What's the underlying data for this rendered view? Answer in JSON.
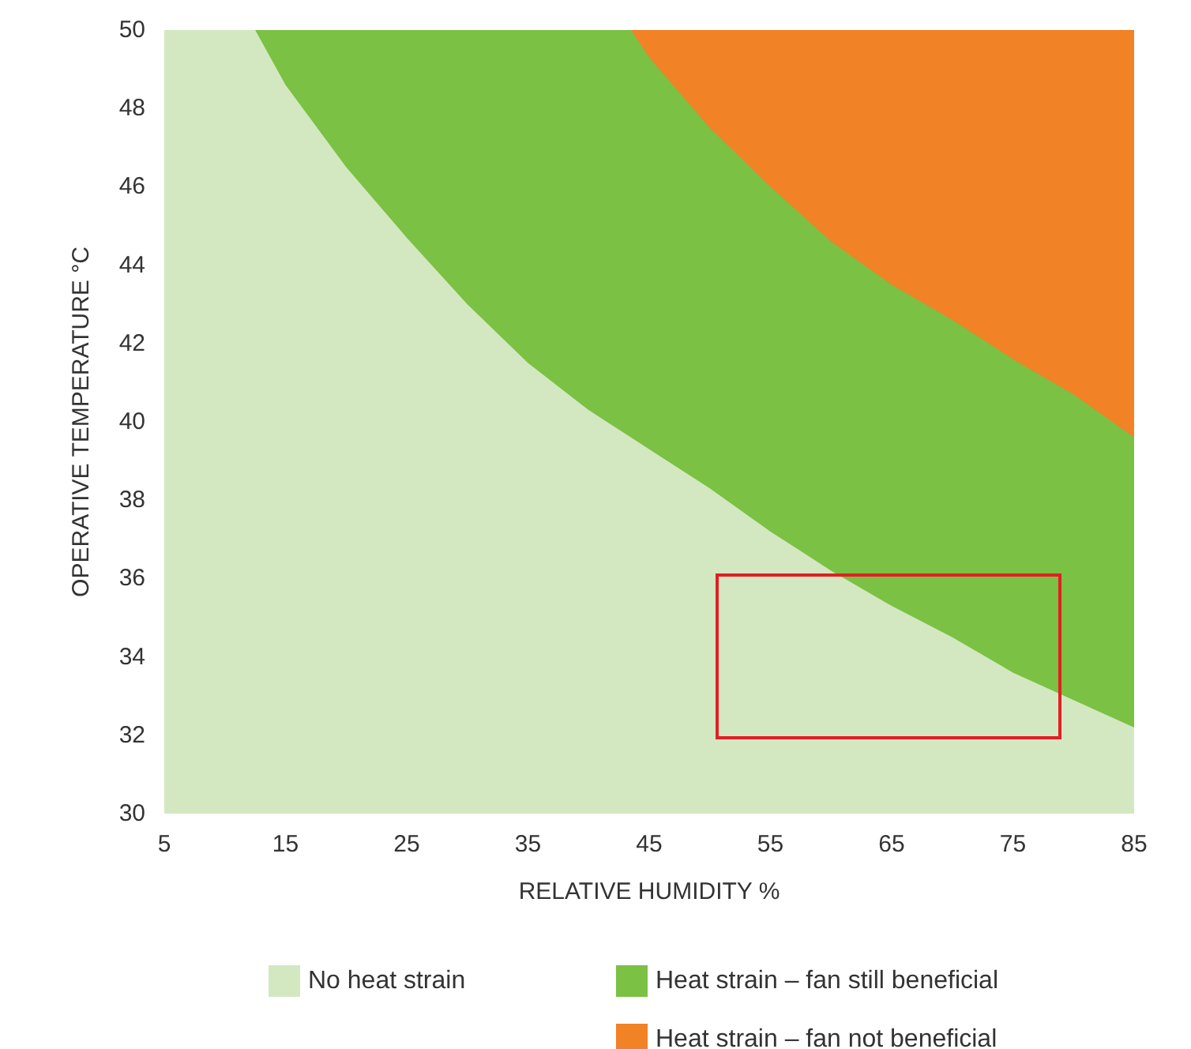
{
  "chart_data": {
    "type": "area",
    "xlabel": "RELATIVE HUMIDITY %",
    "ylabel": "OPERATIVE TEMPERATURE °C",
    "x": [
      5,
      10,
      12.5,
      15,
      20,
      25,
      30,
      35,
      40,
      43.5,
      45,
      50,
      55,
      60,
      65,
      70,
      75,
      80,
      85
    ],
    "series": [
      {
        "name": "No heat strain",
        "color": "#d3e8c1",
        "values": [
          50,
          50,
          50,
          48.6,
          46.5,
          44.7,
          43.0,
          41.5,
          40.3,
          39.6,
          39.3,
          38.3,
          37.2,
          36.2,
          35.3,
          34.5,
          33.6,
          32.9,
          32.2
        ]
      },
      {
        "name": "Heat strain – fan still beneficial",
        "color": "#7bc143",
        "values": [
          null,
          null,
          50,
          50,
          50,
          50,
          50,
          50,
          50,
          50,
          49.3,
          47.5,
          46.0,
          44.6,
          43.5,
          42.6,
          41.6,
          40.7,
          39.6
        ]
      },
      {
        "name": "Heat strain – fan not beneficial",
        "color": "#f28226",
        "values": [
          null,
          null,
          null,
          null,
          null,
          null,
          null,
          null,
          null,
          50,
          50,
          50,
          50,
          50,
          50,
          50,
          50,
          50,
          50
        ]
      }
    ],
    "xlim": [
      5,
      85
    ],
    "xticks": [
      5,
      15,
      25,
      35,
      45,
      55,
      65,
      75,
      85
    ],
    "ylim": [
      30,
      50
    ],
    "yticks": [
      30,
      32,
      34,
      36,
      38,
      40,
      42,
      44,
      46,
      48,
      50
    ],
    "grid": false,
    "legend": "bottom",
    "marker": "none"
  }
}
